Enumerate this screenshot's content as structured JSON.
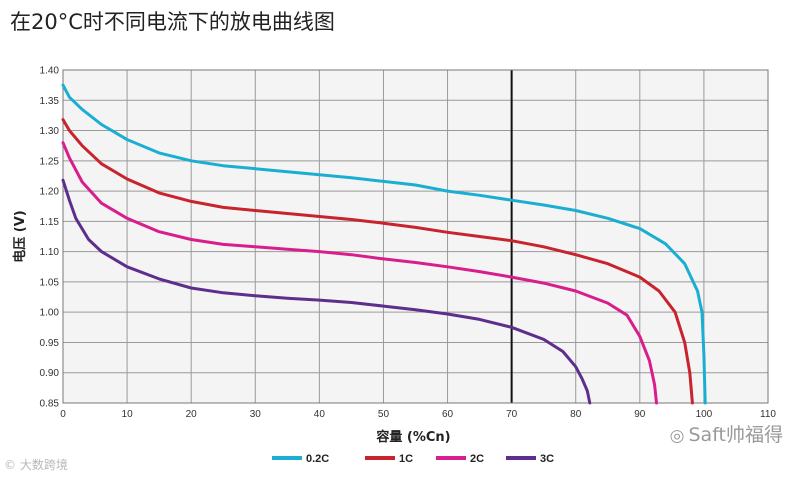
{
  "title": "在20°C时不同电流下的放电曲线图",
  "watermark": "Saft帅福得",
  "logo": "大数跨境",
  "colors": {
    "grid": "#9a9a9a",
    "plot_bg": "#f4f4f4",
    "series": [
      "#1aaed2",
      "#c8242d",
      "#d81e8c",
      "#5e2e8c"
    ]
  },
  "chart_data": {
    "type": "line",
    "xlabel": "容量 (%Cn)",
    "ylabel": "电压 (V)",
    "xlim": [
      0,
      110
    ],
    "ylim": [
      0.85,
      1.4
    ],
    "x_ticks": [
      "0",
      "10",
      "20",
      "30",
      "40",
      "50",
      "60",
      "70",
      "80",
      "90",
      "100",
      "110"
    ],
    "y_ticks": [
      "0.85",
      "0.90",
      "0.95",
      "1.00",
      "1.05",
      "1.10",
      "1.15",
      "1.20",
      "1.25",
      "1.30",
      "1.35",
      "1.40"
    ],
    "grid": true,
    "reference_line_x": 70,
    "legend_position": "bottom",
    "series": [
      {
        "name": "0.2C",
        "points": [
          [
            0,
            1.375
          ],
          [
            1,
            1.355
          ],
          [
            3,
            1.335
          ],
          [
            6,
            1.31
          ],
          [
            10,
            1.285
          ],
          [
            15,
            1.263
          ],
          [
            20,
            1.25
          ],
          [
            25,
            1.242
          ],
          [
            30,
            1.237
          ],
          [
            35,
            1.232
          ],
          [
            40,
            1.227
          ],
          [
            45,
            1.222
          ],
          [
            50,
            1.216
          ],
          [
            55,
            1.21
          ],
          [
            60,
            1.2
          ],
          [
            65,
            1.193
          ],
          [
            70,
            1.185
          ],
          [
            75,
            1.177
          ],
          [
            80,
            1.168
          ],
          [
            85,
            1.155
          ],
          [
            90,
            1.138
          ],
          [
            94,
            1.113
          ],
          [
            97,
            1.08
          ],
          [
            99,
            1.035
          ],
          [
            99.7,
            1.0
          ],
          [
            100,
            0.93
          ],
          [
            100.2,
            0.85
          ]
        ]
      },
      {
        "name": "1C",
        "points": [
          [
            0,
            1.318
          ],
          [
            1,
            1.3
          ],
          [
            3,
            1.275
          ],
          [
            6,
            1.245
          ],
          [
            10,
            1.22
          ],
          [
            15,
            1.197
          ],
          [
            20,
            1.183
          ],
          [
            25,
            1.173
          ],
          [
            30,
            1.168
          ],
          [
            35,
            1.163
          ],
          [
            40,
            1.158
          ],
          [
            45,
            1.153
          ],
          [
            50,
            1.147
          ],
          [
            55,
            1.14
          ],
          [
            60,
            1.132
          ],
          [
            65,
            1.125
          ],
          [
            70,
            1.118
          ],
          [
            75,
            1.108
          ],
          [
            80,
            1.095
          ],
          [
            85,
            1.08
          ],
          [
            90,
            1.058
          ],
          [
            93,
            1.035
          ],
          [
            95.5,
            1.0
          ],
          [
            97,
            0.95
          ],
          [
            97.8,
            0.9
          ],
          [
            98.2,
            0.85
          ]
        ]
      },
      {
        "name": "2C",
        "points": [
          [
            0,
            1.28
          ],
          [
            1,
            1.255
          ],
          [
            3,
            1.215
          ],
          [
            6,
            1.18
          ],
          [
            10,
            1.155
          ],
          [
            15,
            1.133
          ],
          [
            20,
            1.12
          ],
          [
            25,
            1.112
          ],
          [
            30,
            1.108
          ],
          [
            35,
            1.104
          ],
          [
            40,
            1.1
          ],
          [
            45,
            1.095
          ],
          [
            50,
            1.088
          ],
          [
            55,
            1.082
          ],
          [
            60,
            1.075
          ],
          [
            65,
            1.067
          ],
          [
            70,
            1.058
          ],
          [
            75,
            1.048
          ],
          [
            80,
            1.035
          ],
          [
            85,
            1.015
          ],
          [
            88,
            0.995
          ],
          [
            90,
            0.96
          ],
          [
            91.5,
            0.92
          ],
          [
            92.3,
            0.88
          ],
          [
            92.6,
            0.85
          ]
        ]
      },
      {
        "name": "3C",
        "points": [
          [
            0,
            1.218
          ],
          [
            1,
            1.185
          ],
          [
            2,
            1.155
          ],
          [
            4,
            1.12
          ],
          [
            6,
            1.1
          ],
          [
            10,
            1.075
          ],
          [
            15,
            1.055
          ],
          [
            20,
            1.04
          ],
          [
            25,
            1.032
          ],
          [
            30,
            1.027
          ],
          [
            35,
            1.023
          ],
          [
            40,
            1.02
          ],
          [
            45,
            1.016
          ],
          [
            50,
            1.01
          ],
          [
            55,
            1.004
          ],
          [
            60,
            0.997
          ],
          [
            65,
            0.988
          ],
          [
            70,
            0.975
          ],
          [
            75,
            0.955
          ],
          [
            78,
            0.935
          ],
          [
            80,
            0.91
          ],
          [
            81,
            0.89
          ],
          [
            81.8,
            0.87
          ],
          [
            82.2,
            0.85
          ]
        ]
      }
    ]
  }
}
